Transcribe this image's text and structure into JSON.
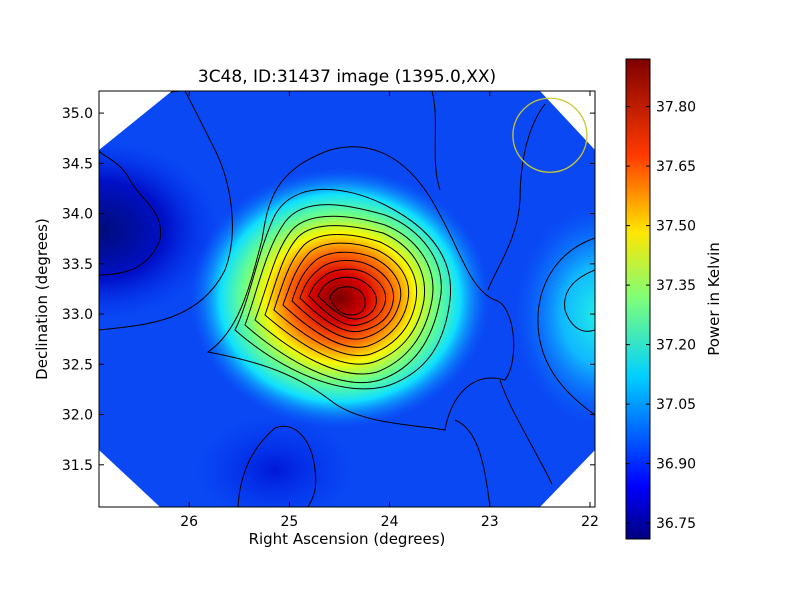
{
  "chart_data": {
    "type": "heatmap",
    "title": "3C48, ID:31437 image (1395.0,XX)",
    "xlabel": "Right Ascension (degrees)",
    "ylabel": "Declination (degrees)",
    "colorbar_label": "Power in Kelvin",
    "colormap": "jet",
    "x_axis_inverted": true,
    "xlim": [
      26.9,
      21.95
    ],
    "ylim": [
      31.08,
      35.22
    ],
    "x_ticks": [
      26,
      25,
      24,
      23,
      22
    ],
    "x_tick_labels": [
      "26",
      "25",
      "24",
      "23",
      "22"
    ],
    "y_ticks": [
      31.5,
      32.0,
      32.5,
      33.0,
      33.5,
      34.0,
      34.5,
      35.0
    ],
    "y_tick_labels": [
      "31.5",
      "32.0",
      "32.5",
      "33.0",
      "33.5",
      "34.0",
      "34.5",
      "35.0"
    ],
    "color_range": [
      36.71,
      37.92
    ],
    "colorbar_ticks": [
      36.75,
      36.9,
      37.05,
      37.2,
      37.35,
      37.5,
      37.65,
      37.8
    ],
    "colorbar_tick_labels": [
      "36.75",
      "36.90",
      "37.05",
      "37.20",
      "37.35",
      "37.50",
      "37.65",
      "37.80"
    ],
    "background_level": 36.97,
    "sources": [
      {
        "ra": 24.43,
        "dec": 33.17,
        "peak": 37.9,
        "note": "main source peak"
      },
      {
        "ra": 21.9,
        "dec": 33.0,
        "peak": 37.08,
        "note": "secondary source at right edge"
      },
      {
        "ra": 26.9,
        "dec": 33.75,
        "peak": 36.74,
        "note": "low region at left edge"
      },
      {
        "ra": 24.95,
        "dec": 31.35,
        "peak": 36.88,
        "note": "low region at bottom"
      }
    ],
    "beam_marker": {
      "ra": 22.4,
      "dec": 34.78,
      "color": "#c8c832"
    }
  }
}
